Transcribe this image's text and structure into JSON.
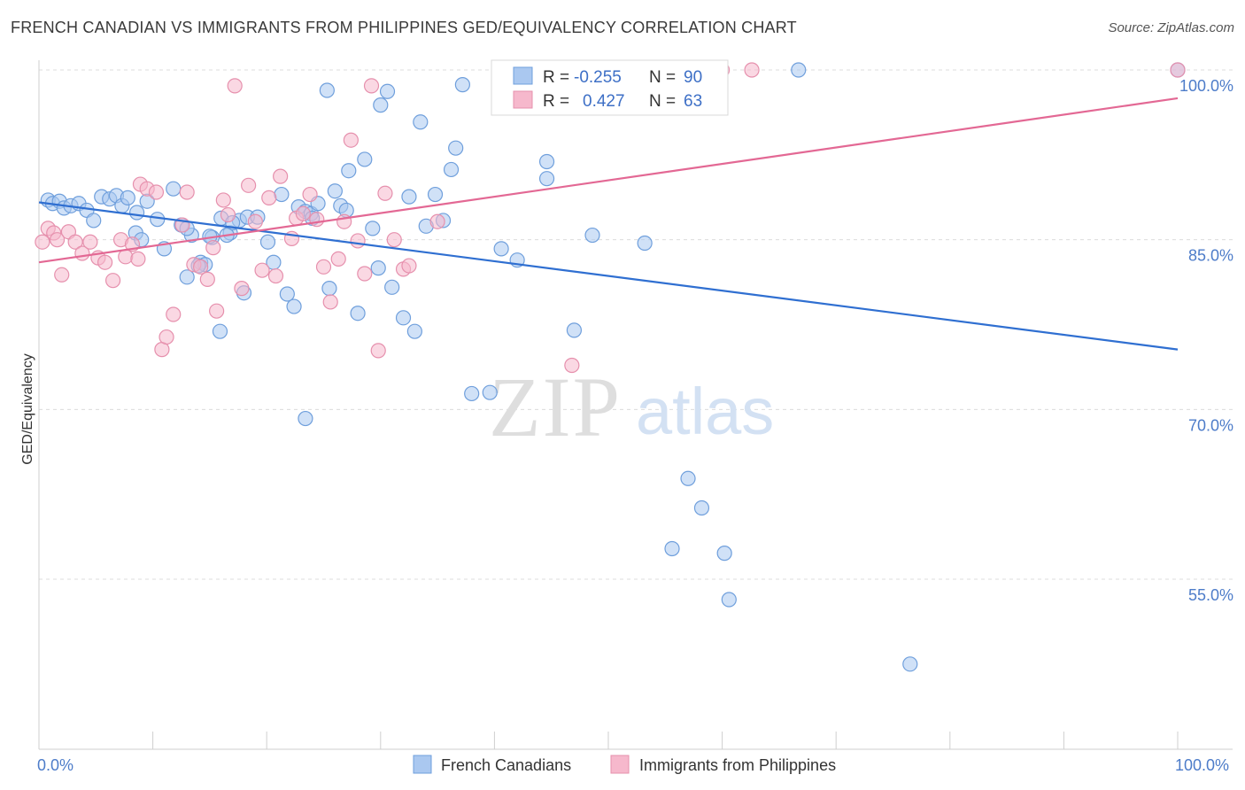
{
  "header": {
    "title": "FRENCH CANADIAN VS IMMIGRANTS FROM PHILIPPINES GED/EQUIVALENCY CORRELATION CHART",
    "source": "Source: ZipAtlas.com"
  },
  "watermark": {
    "zip": "ZIP",
    "atlas": "atlas"
  },
  "colors": {
    "blue_fill": "#aac8f0",
    "blue_stroke": "#6f9fdc",
    "blue_line": "#2f6fd1",
    "pink_fill": "#f6b8cc",
    "pink_stroke": "#e690ad",
    "pink_line": "#e36894",
    "axis_label": "#4d7cc9",
    "grid": "#dcdcdc"
  },
  "legend_top": {
    "rows": [
      {
        "r_label": "R =",
        "r_value": "-0.255",
        "n_label": "N =",
        "n_value": "90",
        "series": "blue"
      },
      {
        "r_label": "R =",
        "r_value": "0.427",
        "n_label": "N =",
        "n_value": "63",
        "series": "pink"
      }
    ]
  },
  "legend_bottom": {
    "items": [
      {
        "label": "French Canadians",
        "series": "blue"
      },
      {
        "label": "Immigrants from Philippines",
        "series": "pink"
      }
    ]
  },
  "chart_data": {
    "type": "scatter",
    "ylabel": "GED/Equivalency",
    "xlabel": "",
    "xlim": [
      0,
      100
    ],
    "ylim": [
      40,
      101
    ],
    "x_tick_labels": [
      "0.0%",
      "100.0%"
    ],
    "y_ticks": [
      {
        "value": 100,
        "label": "100.0%"
      },
      {
        "value": 85,
        "label": "85.0%"
      },
      {
        "value": 70,
        "label": "70.0%"
      },
      {
        "value": 55,
        "label": "55.0%"
      }
    ],
    "grid": true,
    "series": [
      {
        "name": "French Canadians",
        "color": "blue",
        "trend": {
          "x0": 0,
          "y0": 88.3,
          "x1": 100,
          "y1": 75.3
        },
        "points": [
          [
            0.8,
            88.5
          ],
          [
            1.2,
            88.2
          ],
          [
            1.8,
            88.4
          ],
          [
            2.2,
            87.8
          ],
          [
            2.8,
            88.0
          ],
          [
            3.5,
            88.2
          ],
          [
            4.2,
            87.6
          ],
          [
            4.8,
            86.7
          ],
          [
            5.5,
            88.8
          ],
          [
            6.2,
            88.6
          ],
          [
            6.8,
            88.9
          ],
          [
            7.3,
            88.0
          ],
          [
            7.8,
            88.7
          ],
          [
            8.6,
            87.4
          ],
          [
            9.5,
            88.4
          ],
          [
            10.4,
            86.8
          ],
          [
            11.8,
            89.5
          ],
          [
            12.5,
            86.3
          ],
          [
            13.4,
            85.4
          ],
          [
            14.2,
            83.0
          ],
          [
            14.6,
            82.8
          ],
          [
            15.2,
            85.2
          ],
          [
            16.0,
            86.9
          ],
          [
            16.8,
            85.6
          ],
          [
            17.6,
            86.7
          ],
          [
            18.3,
            87.0
          ],
          [
            19.2,
            87.0
          ],
          [
            20.1,
            84.8
          ],
          [
            20.6,
            83.0
          ],
          [
            21.3,
            89.0
          ],
          [
            21.8,
            80.2
          ],
          [
            22.4,
            79.1
          ],
          [
            22.8,
            87.9
          ],
          [
            23.4,
            87.5
          ],
          [
            23.9,
            87.3
          ],
          [
            24.5,
            88.2
          ],
          [
            25.3,
            98.2
          ],
          [
            26.0,
            89.3
          ],
          [
            26.5,
            88.0
          ],
          [
            27.2,
            91.1
          ],
          [
            28.0,
            78.5
          ],
          [
            28.6,
            92.1
          ],
          [
            29.3,
            86.0
          ],
          [
            30.0,
            96.9
          ],
          [
            30.6,
            98.1
          ],
          [
            31.0,
            80.8
          ],
          [
            32.0,
            78.1
          ],
          [
            32.5,
            88.8
          ],
          [
            33.0,
            76.9
          ],
          [
            33.5,
            95.4
          ],
          [
            34.0,
            86.2
          ],
          [
            34.8,
            89.0
          ],
          [
            35.5,
            86.7
          ],
          [
            36.2,
            91.2
          ],
          [
            36.6,
            93.1
          ],
          [
            37.2,
            98.7
          ],
          [
            38.0,
            71.4
          ],
          [
            39.6,
            71.5
          ],
          [
            40.6,
            84.2
          ],
          [
            42.0,
            83.2
          ],
          [
            44.6,
            91.9
          ],
          [
            44.6,
            90.4
          ],
          [
            47.0,
            77.0
          ],
          [
            48.0,
            100.0
          ],
          [
            48.6,
            85.4
          ],
          [
            53.2,
            84.7
          ],
          [
            55.6,
            57.7
          ],
          [
            57.0,
            63.9
          ],
          [
            58.2,
            61.3
          ],
          [
            60.2,
            57.3
          ],
          [
            60.6,
            53.2
          ],
          [
            66.7,
            100.0
          ],
          [
            76.5,
            47.5
          ],
          [
            100.0,
            100.0
          ],
          [
            8.5,
            85.6
          ],
          [
            11.0,
            84.2
          ],
          [
            13.0,
            81.7
          ],
          [
            14.0,
            82.7
          ],
          [
            15.9,
            76.9
          ],
          [
            18.0,
            80.3
          ],
          [
            23.4,
            69.2
          ],
          [
            25.5,
            80.7
          ],
          [
            27.0,
            87.6
          ],
          [
            29.8,
            82.5
          ],
          [
            13.0,
            86.0
          ],
          [
            15.0,
            85.3
          ],
          [
            17.0,
            86.5
          ],
          [
            9.0,
            85.0
          ],
          [
            16.5,
            85.4
          ],
          [
            24.0,
            86.9
          ]
        ]
      },
      {
        "name": "Immigrants from Philippines",
        "color": "pink",
        "trend": {
          "x0": 0,
          "y0": 83.0,
          "x1": 100,
          "y1": 97.5
        },
        "points": [
          [
            0.3,
            84.8
          ],
          [
            0.8,
            86.0
          ],
          [
            1.3,
            85.6
          ],
          [
            2.0,
            81.9
          ],
          [
            2.6,
            85.7
          ],
          [
            3.2,
            84.8
          ],
          [
            3.8,
            83.8
          ],
          [
            4.5,
            84.8
          ],
          [
            5.2,
            83.4
          ],
          [
            5.8,
            83.0
          ],
          [
            6.5,
            81.4
          ],
          [
            7.2,
            85.0
          ],
          [
            7.6,
            83.5
          ],
          [
            8.2,
            84.6
          ],
          [
            8.7,
            83.3
          ],
          [
            8.9,
            89.9
          ],
          [
            9.5,
            89.5
          ],
          [
            10.3,
            89.2
          ],
          [
            10.8,
            75.3
          ],
          [
            11.2,
            76.4
          ],
          [
            11.8,
            78.4
          ],
          [
            12.6,
            86.3
          ],
          [
            13.0,
            89.2
          ],
          [
            13.6,
            82.8
          ],
          [
            14.2,
            82.6
          ],
          [
            14.8,
            81.5
          ],
          [
            15.3,
            84.3
          ],
          [
            15.6,
            78.7
          ],
          [
            16.2,
            88.5
          ],
          [
            16.6,
            87.2
          ],
          [
            17.2,
            98.6
          ],
          [
            17.8,
            80.7
          ],
          [
            18.4,
            89.8
          ],
          [
            19.0,
            86.6
          ],
          [
            19.6,
            82.3
          ],
          [
            20.2,
            88.7
          ],
          [
            20.8,
            81.8
          ],
          [
            21.2,
            90.6
          ],
          [
            22.2,
            85.1
          ],
          [
            22.6,
            86.9
          ],
          [
            23.2,
            87.3
          ],
          [
            23.8,
            89.0
          ],
          [
            24.4,
            86.8
          ],
          [
            25.0,
            82.6
          ],
          [
            25.6,
            79.5
          ],
          [
            26.3,
            83.3
          ],
          [
            26.8,
            86.6
          ],
          [
            27.4,
            93.8
          ],
          [
            28.0,
            84.9
          ],
          [
            28.6,
            82.0
          ],
          [
            29.2,
            98.6
          ],
          [
            29.8,
            75.2
          ],
          [
            30.4,
            89.1
          ],
          [
            31.2,
            85.0
          ],
          [
            32.0,
            82.4
          ],
          [
            32.5,
            82.7
          ],
          [
            35.0,
            86.6
          ],
          [
            46.8,
            73.9
          ],
          [
            55.0,
            100.0
          ],
          [
            60.0,
            100.0
          ],
          [
            62.6,
            100.0
          ],
          [
            100.0,
            100.0
          ],
          [
            1.6,
            85.0
          ]
        ]
      }
    ]
  }
}
